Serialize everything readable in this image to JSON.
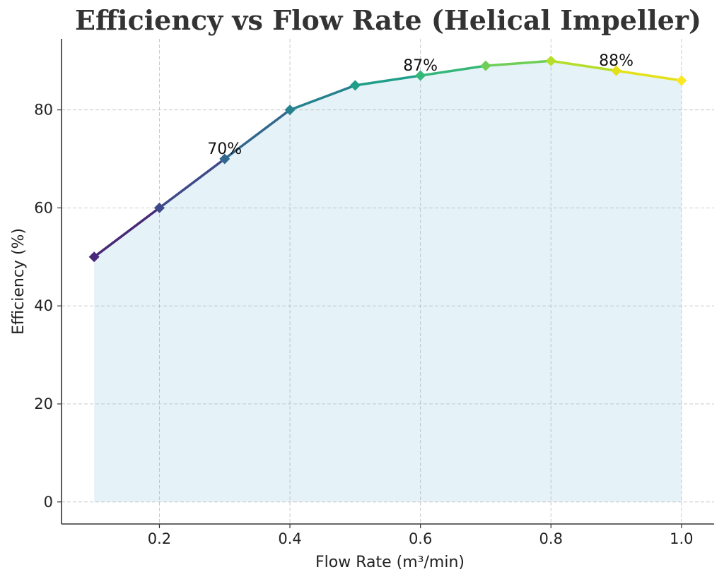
{
  "chart_data": {
    "type": "line",
    "title": "Efficiency vs Flow Rate (Helical Impeller)",
    "xlabel": "Flow Rate (m³/min)",
    "ylabel": "Efficiency (%)",
    "xlim": [
      0.05,
      1.05
    ],
    "ylim": [
      -4.5,
      94.5
    ],
    "x_ticks": [
      0.2,
      0.4,
      0.6,
      0.8,
      1.0
    ],
    "x_tick_labels": [
      "0.2",
      "0.4",
      "0.6",
      "0.8",
      "1.0"
    ],
    "y_ticks": [
      0,
      20,
      40,
      60,
      80
    ],
    "y_tick_labels": [
      "0",
      "20",
      "40",
      "60",
      "80"
    ],
    "grid": true,
    "fill_under_line": true,
    "marker": "diamond",
    "colormap": "viridis",
    "x": [
      0.1,
      0.2,
      0.3,
      0.4,
      0.5,
      0.6,
      0.7,
      0.8,
      0.9,
      1.0
    ],
    "series": [
      {
        "values": [
          50,
          60,
          70,
          80,
          85,
          87,
          89,
          90,
          88,
          86
        ]
      }
    ],
    "annotations": [
      {
        "x": 0.3,
        "y": 70,
        "text": "70%"
      },
      {
        "x": 0.6,
        "y": 87,
        "text": "87%"
      },
      {
        "x": 0.9,
        "y": 88,
        "text": "88%"
      }
    ],
    "colors": {
      "fill": "#add8e6",
      "grid": "#b0b0b0",
      "axis": "#333333",
      "point_colors": [
        "#482878",
        "#3e4989",
        "#31688e",
        "#26828e",
        "#1f9e89",
        "#35b779",
        "#6ece58",
        "#b5de2b",
        "#e4e11a",
        "#fde725"
      ]
    }
  }
}
